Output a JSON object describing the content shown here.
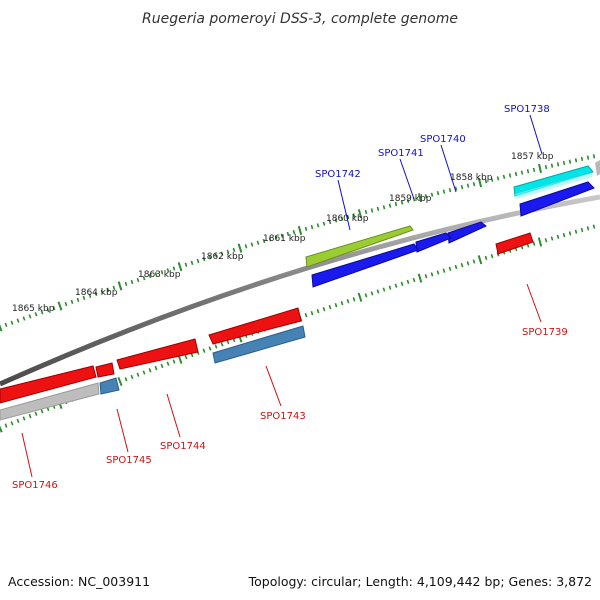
{
  "title": "Ruegeria pomeroyi DSS-3, complete genome",
  "footer": {
    "accession": "Accession: NC_003911",
    "summary": "Topology: circular; Length: 4,109,442 bp; Genes: 3,872"
  },
  "colors": {
    "backbone": "#8a8a8a",
    "tick": "#2e8b2e",
    "forward_label": "#1010c8",
    "reverse_label": "#d01010"
  },
  "ticks": [
    "1857 kbp",
    "1858 kbp",
    "1859 kbp",
    "1860 kbp",
    "1861 kbp",
    "1862 kbp",
    "1863 kbp",
    "1864 kbp",
    "1865 kbp"
  ],
  "genes": [
    {
      "id": "SPO1738",
      "strand": "forward",
      "color": "#00e5e5"
    },
    {
      "id": "SPO1739",
      "strand": "reverse",
      "color": "#ee1111"
    },
    {
      "id": "SPO1740",
      "strand": "forward",
      "color": "#1a1aee"
    },
    {
      "id": "SPO1741",
      "strand": "forward",
      "color": "#1a1aee"
    },
    {
      "id": "SPO1742",
      "strand": "forward",
      "color": "#9acd32"
    },
    {
      "id": "SPO1743",
      "strand": "reverse",
      "color": "#ee1111"
    },
    {
      "id": "SPO1744",
      "strand": "reverse",
      "color": "#ee1111"
    },
    {
      "id": "SPO1745",
      "strand": "reverse",
      "color": "#ee1111"
    },
    {
      "id": "SPO1746",
      "strand": "reverse",
      "color": "#ee1111"
    }
  ]
}
